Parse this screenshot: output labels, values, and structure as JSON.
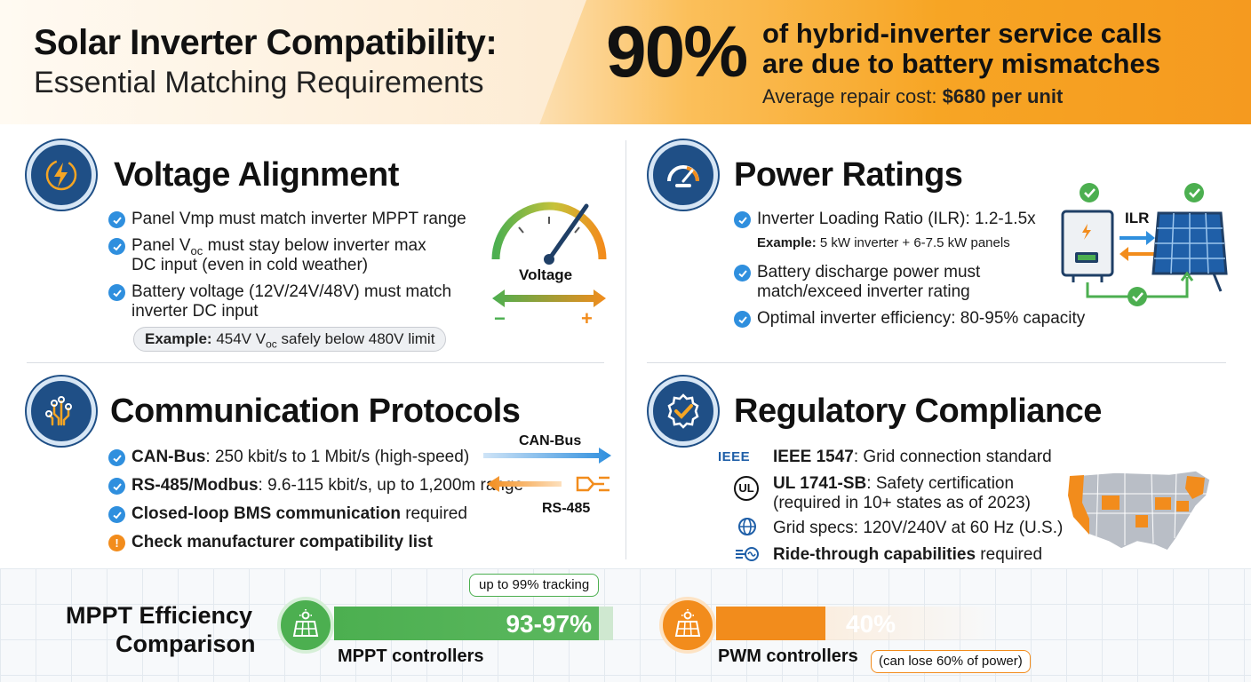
{
  "header": {
    "title_main": "Solar Inverter Compatibility:",
    "title_sub": "Essential Matching Requirements",
    "stat_value": "90%",
    "stat_line1": "of hybrid-inverter service calls",
    "stat_line2": "are due to battery mismatches",
    "note_prefix": "Average repair cost: ",
    "note_value": "$680 per unit"
  },
  "voltage": {
    "title": "Voltage Alignment",
    "bullets": [
      "Panel Vmp must match inverter MPPT range",
      "Panel V",
      "must stay below inverter max",
      "DC input (even in cold weather)",
      "Battery voltage (12V/24V/48V) must match",
      "inverter DC input"
    ],
    "voc_sub": "oc",
    "example_label": "Example:",
    "example_text_a": " 454V V",
    "example_text_b": " safely below 480V limit",
    "gauge_label": "Voltage",
    "minus": "−",
    "plus": "+"
  },
  "power": {
    "title": "Power Ratings",
    "bullet1": "Inverter Loading Ratio (ILR): 1.2-1.5x",
    "example_label": "Example:",
    "example_text": " 5 kW inverter + 6-7.5 kW panels",
    "bullet2a": "Battery discharge power must",
    "bullet2b": "match/exceed inverter rating",
    "bullet3": "Optimal inverter efficiency: 80-95% capacity",
    "ilr_label": "ILR"
  },
  "comm": {
    "title": "Communication Protocols",
    "b1_bold": "CAN-Bus",
    "b1_rest": ": 250 kbit/s to 1 Mbit/s (high-speed)",
    "b2_bold": "RS-485/Modbus",
    "b2_rest": ": 9.6-115 kbit/s, up to 1,200m range",
    "b3_bold": "Closed-loop BMS communication",
    "b3_rest": " required",
    "b4_bold": "Check manufacturer compatibility list",
    "warn_symbol": "!",
    "canbus_label": "CAN-Bus",
    "rs485_label": "RS-485"
  },
  "regulatory": {
    "title": "Regulatory Compliance",
    "ieee_logo": "IEEE",
    "b1_bold": "IEEE 1547",
    "b1_rest": ": Grid connection standard",
    "ul_logo": "UL",
    "b2_bold": "UL 1741-SB",
    "b2_rest": ": Safety certification",
    "b2_line2": "(required in 10+ states as of 2023)",
    "b3": "Grid specs: 120V/240V at 60 Hz (U.S.)",
    "b4_bold": "Ride-through capabilities",
    "b4_rest": " required"
  },
  "mppt": {
    "title_line1": "MPPT Efficiency",
    "title_line2": "Comparison",
    "tracking_callout": "up to 99% tracking",
    "mppt_value": "93-97%",
    "mppt_label": "MPPT controllers",
    "pwm_value": "40%",
    "pwm_label": "PWM controllers",
    "pwm_callout": "(can lose 60% of power)"
  },
  "colors": {
    "navy": "#1f4f86",
    "check_blue": "#2f8fde",
    "orange": "#f28c1c",
    "green": "#4caf50"
  }
}
